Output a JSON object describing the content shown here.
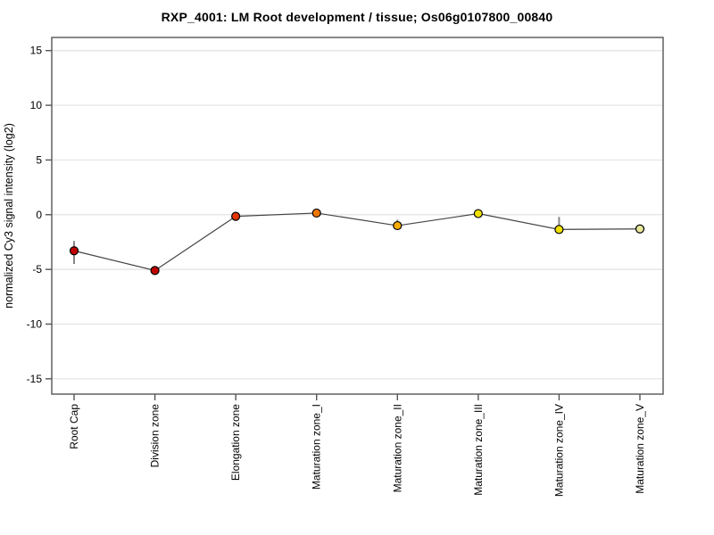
{
  "chart_data": {
    "type": "line",
    "title": "RXP_4001: LM Root development / tissue; Os06g0107800_00840",
    "xlabel": "",
    "ylabel": "normalized Cy3 signal intensity (log2)",
    "categories": [
      "Root Cap",
      "Division zone",
      "Elongation zone",
      "Maturation zone_I",
      "Maturation zone_II",
      "Maturation zone_III",
      "Maturation zone_IV",
      "Maturation zone_V"
    ],
    "series": [
      {
        "name": "normalized Cy3 signal intensity (log2)",
        "values": [
          -3.3,
          -5.1,
          -0.15,
          0.15,
          -1.0,
          0.1,
          -1.35,
          -1.3
        ],
        "error_low": [
          -4.5,
          -5.45,
          -0.45,
          -0.1,
          -1.3,
          -0.05,
          -1.6,
          -1.5
        ],
        "error_high": [
          -2.4,
          -4.75,
          0.15,
          0.45,
          -0.45,
          0.25,
          -0.2,
          -1.15
        ],
        "point_colors": [
          "#c00000",
          "#c00000",
          "#e03500",
          "#ee7700",
          "#f8ac00",
          "#f0e000",
          "#f0e000",
          "#e8e89c"
        ]
      }
    ],
    "yticks": [
      15,
      10,
      5,
      0,
      -5,
      -10,
      -15
    ],
    "ylim": [
      -16.4,
      16.2
    ],
    "grid": "horizontal",
    "legend_position": "none",
    "style": {
      "line_color": "#444444",
      "error_bar_color": "#888888",
      "marker_outline": "#000000",
      "grid_color": "#e2e2e2",
      "frame_color": "#555555",
      "background": "#ffffff"
    }
  }
}
